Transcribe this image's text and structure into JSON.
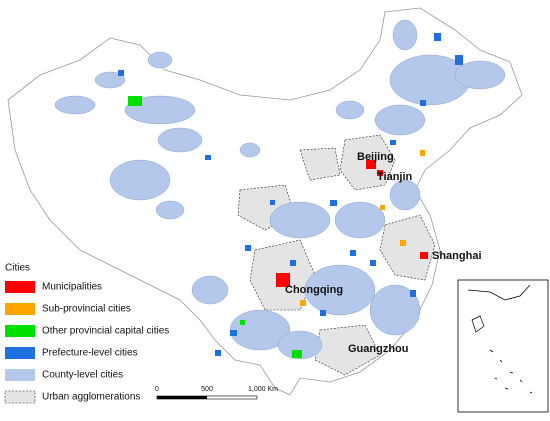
{
  "labels": [
    "Beijing",
    "Tianjin",
    "Shanghai",
    "Chongqing",
    "Guangzhou"
  ],
  "legend": {
    "title": "Cities",
    "items": [
      "Municipalities",
      "Sub-provincial cities",
      "Other provincial capital cities",
      "Prefecture-level cities",
      "County-level cities",
      "Urban agglomerations"
    ]
  },
  "scale_bar": [
    "0",
    "500",
    "1,000 Km"
  ]
}
